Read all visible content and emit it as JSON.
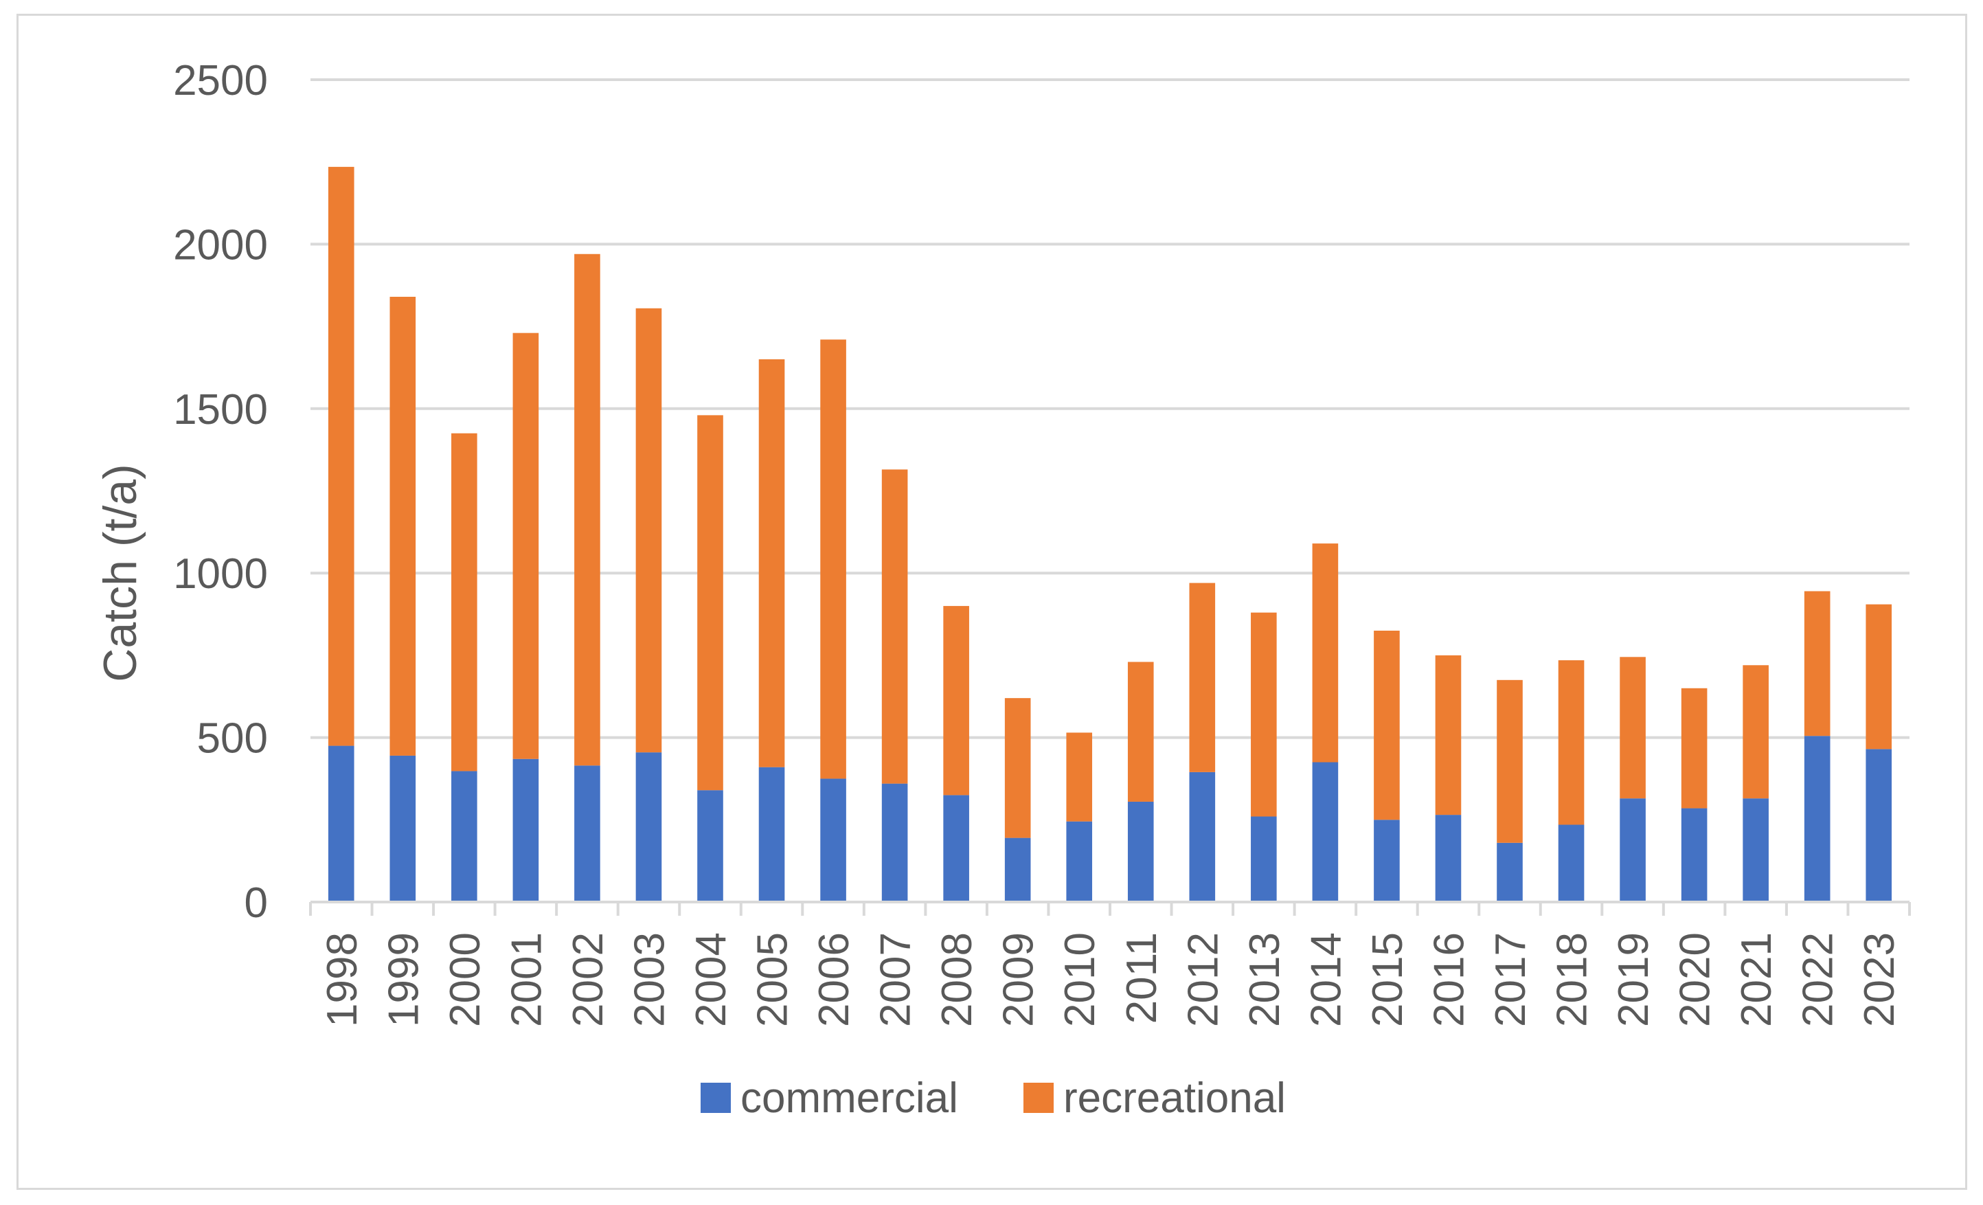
{
  "chart_data": {
    "type": "bar",
    "stacked": true,
    "title": "",
    "xlabel": "",
    "ylabel": "Catch (t/a)",
    "ylim": [
      0,
      2500
    ],
    "yticks": [
      0,
      500,
      1000,
      1500,
      2000,
      2500
    ],
    "grid": true,
    "legend_position": "bottom-center",
    "categories": [
      "1998",
      "1999",
      "2000",
      "2001",
      "2002",
      "2003",
      "2004",
      "2005",
      "2006",
      "2007",
      "2008",
      "2009",
      "2010",
      "2011",
      "2012",
      "2013",
      "2014",
      "2015",
      "2016",
      "2017",
      "2018",
      "2019",
      "2020",
      "2021",
      "2022",
      "2023"
    ],
    "series": [
      {
        "name": "commercial",
        "color": "#4472c4",
        "values": [
          475,
          445,
          398,
          435,
          415,
          455,
          340,
          410,
          375,
          360,
          325,
          195,
          245,
          305,
          395,
          260,
          425,
          250,
          265,
          180,
          235,
          315,
          285,
          315,
          505,
          465
        ]
      },
      {
        "name": "recreational",
        "color": "#ed7d31",
        "values": [
          1760,
          1395,
          1027,
          1295,
          1555,
          1350,
          1140,
          1240,
          1335,
          955,
          575,
          425,
          270,
          425,
          575,
          620,
          665,
          575,
          485,
          495,
          500,
          430,
          365,
          405,
          440,
          440
        ]
      }
    ]
  }
}
